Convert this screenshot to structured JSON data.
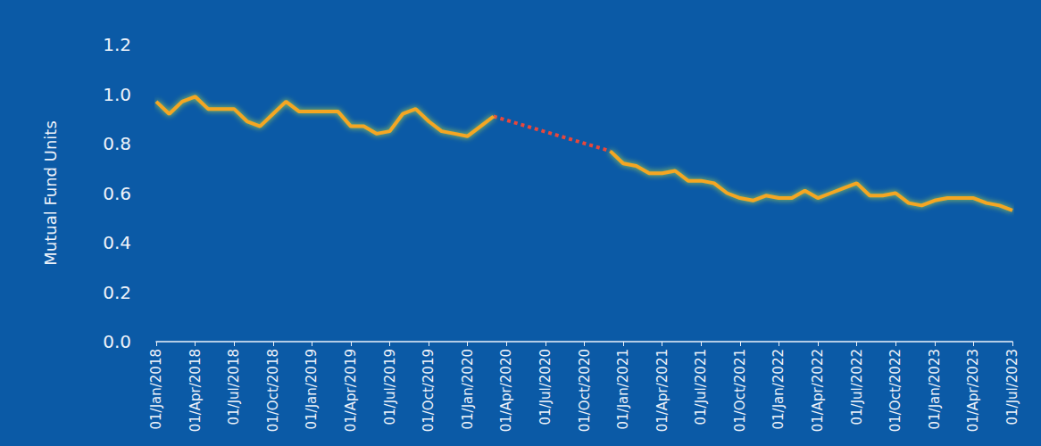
{
  "chart_data": {
    "type": "line",
    "y_label": "Mutual Fund Units",
    "categories": [
      "01/Jan/2018",
      null,
      null,
      "01/Apr/2018",
      null,
      null,
      "01/Jul/2018",
      null,
      null,
      "01/Oct/2018",
      null,
      null,
      "01/Jan/2019",
      null,
      null,
      "01/Apr/2019",
      null,
      null,
      "01/Jul/2019",
      null,
      null,
      "01/Oct/2019",
      null,
      null,
      "01/Jan/2020",
      null,
      null,
      "01/Apr/2020",
      null,
      null,
      "01/Jul/2020",
      null,
      null,
      "01/Oct/2020",
      null,
      null,
      "01/Jan/2021",
      null,
      null,
      "01/Apr/2021",
      null,
      null,
      "01/Jul/2021",
      null,
      null,
      "01/Oct/2021",
      null,
      null,
      "01/Jan/2022",
      null,
      null,
      "01/Apr/2022",
      null,
      null,
      "01/Jul/2022",
      null,
      null,
      "01/Oct/2022",
      null,
      null,
      "01/Jan/2023",
      null,
      null,
      "01/Apr/2023",
      null,
      null,
      "01/Jul/2023"
    ],
    "series": [
      {
        "color": "#f5a623",
        "line_style": "solid",
        "values": [
          0.97,
          0.92,
          0.97,
          0.99,
          0.94,
          0.94,
          0.94,
          0.89,
          0.87,
          0.92,
          0.97,
          0.93,
          0.93,
          0.93,
          0.93,
          0.87,
          0.87,
          0.84,
          0.85,
          0.92,
          0.94,
          0.89,
          0.85,
          0.84,
          0.83,
          0.87,
          0.91,
          null,
          null,
          null,
          null,
          null,
          null,
          null,
          null,
          0.77,
          0.72,
          0.71,
          0.68,
          0.68,
          0.69,
          0.65,
          0.65,
          0.64,
          0.6,
          0.58,
          0.57,
          0.59,
          0.58,
          0.58,
          0.61,
          0.58,
          0.6,
          0.62,
          0.64,
          0.59,
          0.59,
          0.6,
          0.56,
          0.55,
          0.57,
          0.58,
          0.58,
          0.58,
          0.56,
          0.55,
          0.53
        ]
      },
      {
        "color": "#e8473c",
        "line_style": "dotted",
        "values": [
          null,
          null,
          null,
          null,
          null,
          null,
          null,
          null,
          null,
          null,
          null,
          null,
          null,
          null,
          null,
          null,
          null,
          null,
          null,
          null,
          null,
          null,
          null,
          null,
          null,
          null,
          0.91,
          null,
          null,
          null,
          null,
          null,
          null,
          null,
          null,
          0.77,
          null,
          null,
          null,
          null,
          null,
          null,
          null,
          null,
          null,
          null,
          null,
          null,
          null,
          null,
          null,
          null,
          null,
          null,
          null,
          null,
          null,
          null,
          null,
          null,
          null,
          null,
          null,
          null,
          null,
          null,
          null
        ]
      }
    ],
    "ylim": [
      0,
      1.2
    ],
    "yticks": [
      {
        "value": 0,
        "label": "0.0"
      },
      0.2,
      0.4,
      0.6,
      0.8,
      {
        "value": 1.0,
        "label": "1.0"
      },
      1.2
    ],
    "grid": false
  }
}
